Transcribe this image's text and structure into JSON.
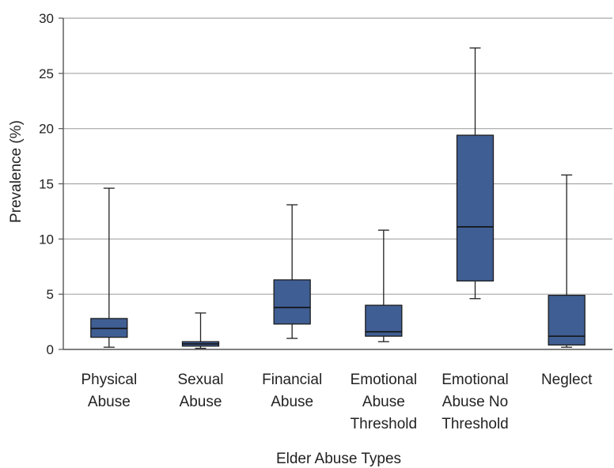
{
  "chart_data": {
    "type": "box",
    "xlabel": "Elder Abuse Types",
    "ylabel": "Prevalence (%)",
    "ylim": [
      0,
      30
    ],
    "yticks": [
      "0",
      "5",
      "10",
      "15",
      "20",
      "25",
      "30"
    ],
    "grid": true,
    "box_color": "#3f5e93",
    "categories": [
      {
        "lines": [
          "Physical",
          "Abuse"
        ],
        "min": 0.2,
        "q1": 1.1,
        "median": 1.9,
        "q3": 2.8,
        "max": 14.6
      },
      {
        "lines": [
          "Sexual",
          "Abuse"
        ],
        "min": 0.1,
        "q1": 0.3,
        "median": 0.5,
        "q3": 0.7,
        "max": 3.3
      },
      {
        "lines": [
          "Financial",
          "Abuse"
        ],
        "min": 1.0,
        "q1": 2.3,
        "median": 3.8,
        "q3": 6.3,
        "max": 13.1
      },
      {
        "lines": [
          "Emotional",
          "Abuse",
          "Threshold"
        ],
        "min": 0.7,
        "q1": 1.2,
        "median": 1.6,
        "q3": 4.0,
        "max": 10.8
      },
      {
        "lines": [
          "Emotional",
          "Abuse No",
          "Threshold"
        ],
        "min": 4.6,
        "q1": 6.2,
        "median": 11.1,
        "q3": 19.4,
        "max": 27.3
      },
      {
        "lines": [
          "Neglect"
        ],
        "min": 0.2,
        "q1": 0.4,
        "median": 1.2,
        "q3": 4.9,
        "max": 15.8
      }
    ]
  }
}
